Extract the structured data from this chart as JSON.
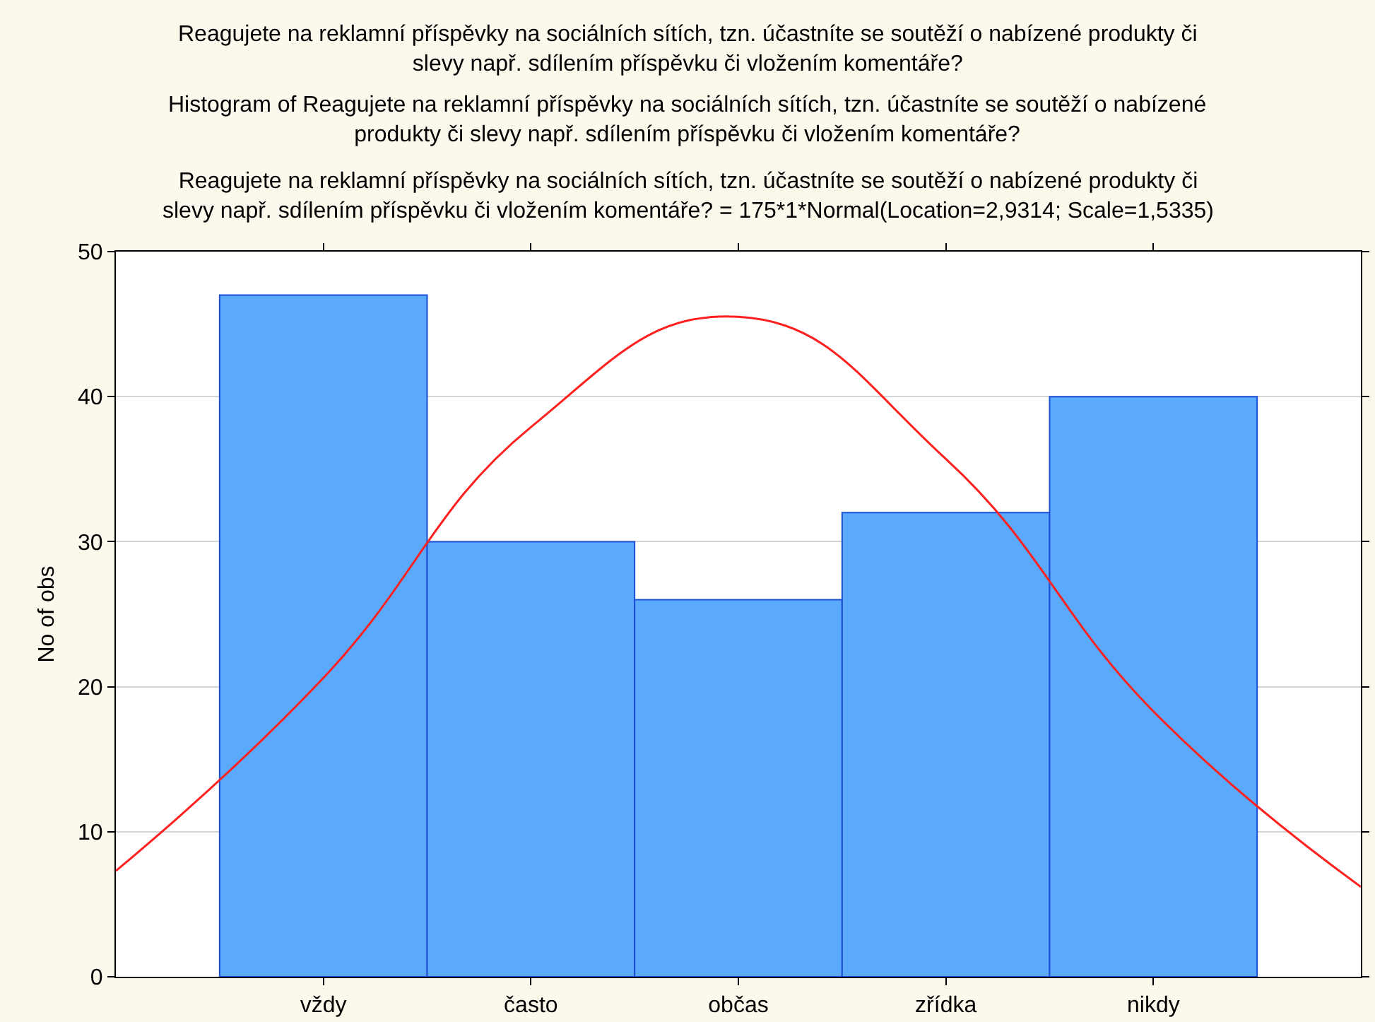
{
  "chart_data": {
    "type": "bar",
    "title": "Reagujete na reklamní příspěvky na sociálních sítích, tzn. účastníte se soutěží o nabízené produkty či slevy např. sdílením příspěvku či vložením komentáře?",
    "subtitle": "Histogram of Reagujete na reklamní příspěvky na sociálních sítích, tzn. účastníte se soutěží o nabízené produkty či slevy např. sdílením příspěvku či vložením komentáře?",
    "annotations": [
      "Reagujete na reklamní příspěvky na sociálních sítích, tzn. účastníte se soutěží o nabízené produkty či slevy např. sdílením příspěvku či vložením komentáře? = 175*1*Normal(Location=2,9314; Scale=1,5335)"
    ],
    "ylabel": "No of obs",
    "categories": [
      null,
      "vždy",
      "často",
      "občas",
      "zřídka",
      "nikdy",
      null
    ],
    "series": [
      {
        "color": "#5aa9fa",
        "values": [
          null,
          47,
          30,
          26,
          32,
          40,
          null
        ]
      },
      {
        "type": "line",
        "color": "#ff2020",
        "values": [
          7.3,
          20.6,
          37.9,
          45.5,
          35.7,
          18.3,
          6.2
        ]
      }
    ],
    "ylim": [
      0,
      50
    ],
    "yticks": [
      0,
      10,
      20,
      30,
      40,
      50
    ],
    "grid": "y",
    "line_style": "solid",
    "marker": "none"
  }
}
